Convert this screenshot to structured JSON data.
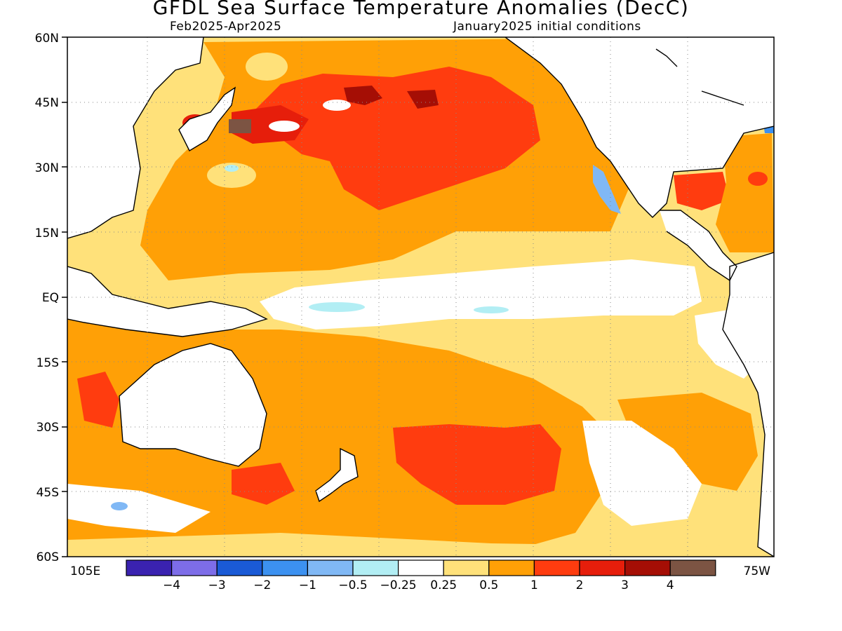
{
  "header": {
    "title": "GFDL Sea Surface Temperature Anomalies (DecC)",
    "period": "Feb2025-Apr2025",
    "init": "January2025 initial conditions"
  },
  "axes": {
    "lat_labels": [
      "60N",
      "45N",
      "30N",
      "15N",
      "EQ",
      "15S",
      "30S",
      "45S",
      "60S"
    ],
    "lon_left": "105E",
    "lon_right": "75W"
  },
  "colorbar": {
    "labels": [
      "-4",
      "-3",
      "-2",
      "-1",
      "-0.5",
      "-0.25",
      "0.25",
      "0.5",
      "1",
      "2",
      "3",
      "4"
    ],
    "colors": [
      "#3a22b0",
      "#7d6de8",
      "#1a5ad6",
      "#3c91f0",
      "#80b8f5",
      "#b2eef4",
      "#ffffff",
      "#ffe17a",
      "#ffa006",
      "#ff3c0f",
      "#e61e0b",
      "#a50e05",
      "#7c5443"
    ]
  },
  "map_regions": {
    "colors": {
      "neutral": "#ffffff",
      "weak_warm": "#ffe17a",
      "warm": "#ffa006",
      "strong_warm": "#ff3c0f",
      "very_strong_warm": "#e61e0b",
      "extreme_warm": "#a50e05",
      "peak_warm": "#7c5443",
      "weak_cool": "#b2eef4",
      "cool": "#80b8f5",
      "strong_cool": "#3c91f0"
    }
  }
}
